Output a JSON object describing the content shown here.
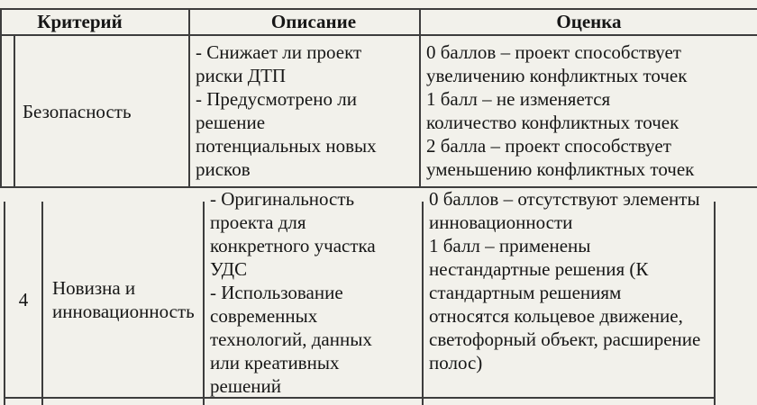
{
  "page": {
    "background": "#f2f1eb",
    "border_color": "#3d3d3d",
    "text_color": "#161616"
  },
  "table": {
    "headers": {
      "criterion": "Критерий",
      "description": "Описание",
      "score": "Оценка"
    },
    "fragment1": {
      "row": {
        "num": "",
        "criterion": "Безопасность",
        "description": "- Снижает ли проект\nриски ДТП\n- Предусмотрено ли\nрешение\nпотенциальных новых\nрисков",
        "score": "0 баллов – проект способствует\nувеличению конфликтных точек\n1 балл – не изменяется\nколичество конфликтных точек\n2 балла – проект способствует\nуменьшению конфликтных точек"
      }
    },
    "fragment2": {
      "row": {
        "num": "4",
        "criterion": "Новизна и\nинновационность",
        "description": "- Оригинальность\nпроекта для\nконкретного участка\nУДС\n- Использование\nсовременных\nтехнологий, данных\nили креативных\nрешений",
        "score": "0 баллов – отсутствуют элементы\nинновационности\n1 балл – применены\nнестандартные решения (К\nстандартным решениям\nотносятся кольцевое движение,\nсветофорный объект, расширение\nполос)"
      }
    }
  }
}
